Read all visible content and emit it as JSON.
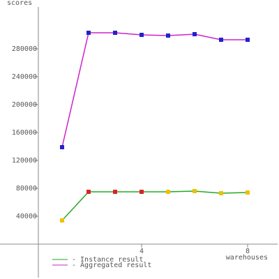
{
  "chart_data": {
    "type": "line",
    "y_label": "scores",
    "x_label": "warehouses",
    "x": [
      1,
      2,
      3,
      4,
      5,
      6,
      7,
      8
    ],
    "series": [
      {
        "name": "- Instance result",
        "color": "#22aa22",
        "values": [
          34000,
          75000,
          75000,
          75000,
          75000,
          76000,
          73000,
          74000
        ],
        "point_colors": [
          "#f0c000",
          "#dd2222",
          "#dd2222",
          "#dd2222",
          "#f0c000",
          "#f0c000",
          "#f0c000",
          "#f0c000"
        ]
      },
      {
        "name": "- Aggregated result",
        "color": "#cc22cc",
        "values": [
          139000,
          303000,
          303000,
          300000,
          299000,
          301000,
          293000,
          293000
        ],
        "point_colors": [
          "#2222cc",
          "#2222cc",
          "#2222cc",
          "#2222cc",
          "#2222cc",
          "#2222cc",
          "#2222cc",
          "#2222cc"
        ]
      }
    ],
    "xlim": [
      0,
      9
    ],
    "xticks": [
      4,
      8
    ],
    "ylim": [
      -50000,
      340000
    ],
    "yticks": [
      40000,
      80000,
      120000,
      160000,
      200000,
      240000,
      280000
    ]
  }
}
